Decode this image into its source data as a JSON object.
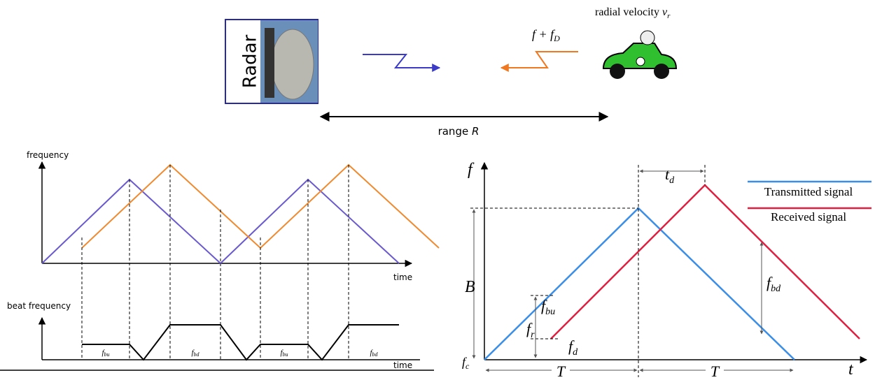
{
  "top": {
    "radar": "Radar",
    "doppler": {
      "base": "f + f",
      "sub": "D"
    },
    "velocity": {
      "base": "radial velocity ",
      "var": "v",
      "sub": "r"
    },
    "range": {
      "base": "range ",
      "var": "R"
    }
  },
  "left": {
    "y_label": "frequency",
    "x_label": "time",
    "beat_label": "beat frequency",
    "beat_x_label": "time",
    "beat_segments": [
      {
        "base": "f",
        "sub": "bu"
      },
      {
        "base": "f",
        "sub": "bd"
      },
      {
        "base": "f",
        "sub": "bu"
      },
      {
        "base": "f",
        "sub": "bd"
      }
    ]
  },
  "right": {
    "y_label": "f",
    "x_label": "t",
    "delay": {
      "base": "t",
      "sub": "d"
    },
    "legend": [
      "Transmitted signal",
      "Received signal"
    ],
    "bandwidth": "B",
    "carrier": {
      "base": "f",
      "sub": "c"
    },
    "f_bd": {
      "base": "f",
      "sub": "bd"
    },
    "f_bu": {
      "base": "f",
      "sub": "bu"
    },
    "f_r": {
      "base": "f",
      "sub": "r"
    },
    "f_d": {
      "base": "f",
      "sub": "d"
    },
    "period": [
      "T",
      "T"
    ]
  }
}
